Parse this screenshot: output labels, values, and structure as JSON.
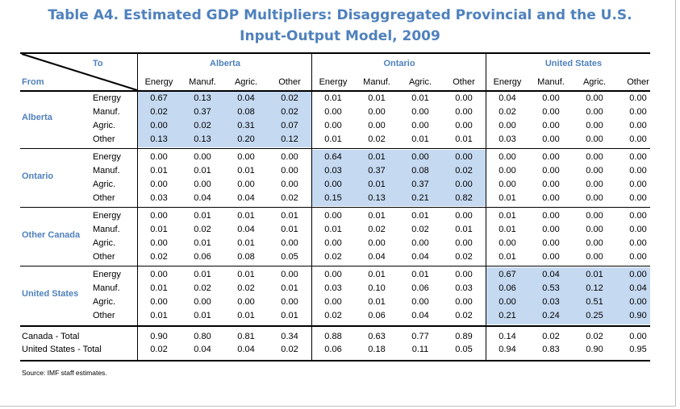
{
  "title": {
    "line1": "Table A4. Estimated GDP Multipliers: Disaggregated Provincial and the U.S.",
    "line2": "Input-Output Model, 2009"
  },
  "header": {
    "to_label": "To",
    "from_label": "From",
    "groups": [
      "Alberta",
      "Ontario",
      "United States"
    ],
    "columns": [
      "Energy",
      "Manuf.",
      "Agric.",
      "Other",
      "Energy",
      "Manuf.",
      "Agric.",
      "Other",
      "Energy",
      "Manuf.",
      "Agric.",
      "Other"
    ]
  },
  "row_groups": [
    {
      "label": "Alberta",
      "sub_labels": [
        "Energy",
        "Manuf.",
        "Agric.",
        "Other"
      ],
      "rows": [
        [
          "0.67",
          "0.13",
          "0.04",
          "0.02",
          "0.01",
          "0.01",
          "0.01",
          "0.00",
          "0.04",
          "0.00",
          "0.00",
          "0.00"
        ],
        [
          "0.02",
          "0.37",
          "0.08",
          "0.02",
          "0.00",
          "0.00",
          "0.00",
          "0.00",
          "0.02",
          "0.00",
          "0.00",
          "0.00"
        ],
        [
          "0.00",
          "0.02",
          "0.31",
          "0.07",
          "0.00",
          "0.00",
          "0.00",
          "0.00",
          "0.00",
          "0.00",
          "0.00",
          "0.00"
        ],
        [
          "0.13",
          "0.13",
          "0.20",
          "0.12",
          "0.01",
          "0.02",
          "0.01",
          "0.01",
          "0.03",
          "0.00",
          "0.00",
          "0.00"
        ]
      ]
    },
    {
      "label": "Ontario",
      "sub_labels": [
        "Energy",
        "Manuf.",
        "Agric.",
        "Other"
      ],
      "rows": [
        [
          "0.00",
          "0.00",
          "0.00",
          "0.00",
          "0.64",
          "0.01",
          "0.00",
          "0.00",
          "0.00",
          "0.00",
          "0.00",
          "0.00"
        ],
        [
          "0.01",
          "0.01",
          "0.01",
          "0.00",
          "0.03",
          "0.37",
          "0.08",
          "0.02",
          "0.00",
          "0.00",
          "0.00",
          "0.00"
        ],
        [
          "0.00",
          "0.00",
          "0.00",
          "0.00",
          "0.00",
          "0.01",
          "0.37",
          "0.00",
          "0.00",
          "0.00",
          "0.00",
          "0.00"
        ],
        [
          "0.03",
          "0.04",
          "0.04",
          "0.02",
          "0.15",
          "0.13",
          "0.21",
          "0.82",
          "0.01",
          "0.00",
          "0.00",
          "0.00"
        ]
      ]
    },
    {
      "label": "Other Canada",
      "sub_labels": [
        "Energy",
        "Manuf.",
        "Agric.",
        "Other"
      ],
      "rows": [
        [
          "0.00",
          "0.01",
          "0.01",
          "0.01",
          "0.00",
          "0.01",
          "0.01",
          "0.00",
          "0.01",
          "0.00",
          "0.00",
          "0.00"
        ],
        [
          "0.01",
          "0.02",
          "0.04",
          "0.01",
          "0.01",
          "0.02",
          "0.02",
          "0.01",
          "0.01",
          "0.00",
          "0.00",
          "0.00"
        ],
        [
          "0.00",
          "0.01",
          "0.01",
          "0.00",
          "0.00",
          "0.00",
          "0.00",
          "0.00",
          "0.00",
          "0.00",
          "0.00",
          "0.00"
        ],
        [
          "0.02",
          "0.06",
          "0.08",
          "0.05",
          "0.02",
          "0.04",
          "0.04",
          "0.02",
          "0.01",
          "0.00",
          "0.00",
          "0.00"
        ]
      ]
    },
    {
      "label": "United States",
      "sub_labels": [
        "Energy",
        "Manuf.",
        "Agric.",
        "Other"
      ],
      "rows": [
        [
          "0.00",
          "0.01",
          "0.01",
          "0.00",
          "0.00",
          "0.01",
          "0.01",
          "0.00",
          "0.67",
          "0.04",
          "0.01",
          "0.00"
        ],
        [
          "0.01",
          "0.02",
          "0.02",
          "0.01",
          "0.03",
          "0.10",
          "0.06",
          "0.03",
          "0.06",
          "0.53",
          "0.12",
          "0.04"
        ],
        [
          "0.00",
          "0.00",
          "0.00",
          "0.00",
          "0.00",
          "0.01",
          "0.00",
          "0.00",
          "0.00",
          "0.03",
          "0.51",
          "0.00"
        ],
        [
          "0.01",
          "0.01",
          "0.01",
          "0.01",
          "0.02",
          "0.06",
          "0.04",
          "0.02",
          "0.21",
          "0.24",
          "0.25",
          "0.90"
        ]
      ]
    }
  ],
  "totals": [
    {
      "label": "Canada - Total",
      "values": [
        "0.90",
        "0.80",
        "0.81",
        "0.34",
        "0.88",
        "0.63",
        "0.77",
        "0.89",
        "0.14",
        "0.02",
        "0.02",
        "0.00"
      ]
    },
    {
      "label": "United States - Total",
      "values": [
        "0.02",
        "0.04",
        "0.04",
        "0.02",
        "0.06",
        "0.18",
        "0.11",
        "0.05",
        "0.94",
        "0.83",
        "0.90",
        "0.95"
      ]
    }
  ],
  "source": "Source: IMF staff estimates.",
  "colors": {
    "title": "#4f81bd",
    "highlight": "#c5d9f1"
  }
}
